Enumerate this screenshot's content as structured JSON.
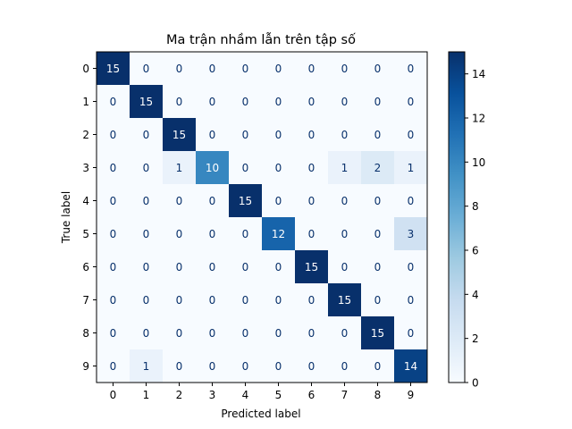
{
  "chart_data": {
    "type": "heatmap",
    "title": "Ma trận nhầm lẫn trên tập số",
    "xlabel": "Predicted label",
    "ylabel": "True label",
    "x_categories": [
      "0",
      "1",
      "2",
      "3",
      "4",
      "5",
      "6",
      "7",
      "8",
      "9"
    ],
    "y_categories": [
      "0",
      "1",
      "2",
      "3",
      "4",
      "5",
      "6",
      "7",
      "8",
      "9"
    ],
    "values": [
      [
        15,
        0,
        0,
        0,
        0,
        0,
        0,
        0,
        0,
        0
      ],
      [
        0,
        15,
        0,
        0,
        0,
        0,
        0,
        0,
        0,
        0
      ],
      [
        0,
        0,
        15,
        0,
        0,
        0,
        0,
        0,
        0,
        0
      ],
      [
        0,
        0,
        1,
        10,
        0,
        0,
        0,
        1,
        2,
        1
      ],
      [
        0,
        0,
        0,
        0,
        15,
        0,
        0,
        0,
        0,
        0
      ],
      [
        0,
        0,
        0,
        0,
        0,
        12,
        0,
        0,
        0,
        3
      ],
      [
        0,
        0,
        0,
        0,
        0,
        0,
        15,
        0,
        0,
        0
      ],
      [
        0,
        0,
        0,
        0,
        0,
        0,
        0,
        15,
        0,
        0
      ],
      [
        0,
        0,
        0,
        0,
        0,
        0,
        0,
        0,
        15,
        0
      ],
      [
        0,
        1,
        0,
        0,
        0,
        0,
        0,
        0,
        0,
        14
      ]
    ],
    "colorbar": {
      "range": [
        0,
        15
      ],
      "ticks": [
        0,
        2,
        4,
        6,
        8,
        10,
        12,
        14
      ]
    },
    "colormap": "Blues",
    "grid": false
  }
}
